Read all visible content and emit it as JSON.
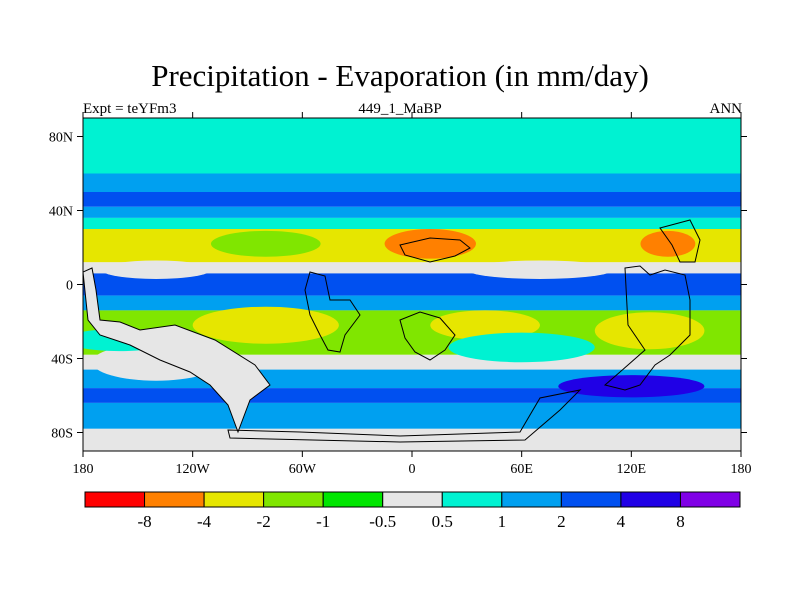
{
  "chart_data": {
    "type": "heatmap",
    "title": "Precipitation - Evaporation (in mm/day)",
    "left_label": "Expt = teYFm3",
    "center_label": "449_1_MaBP",
    "right_label": "ANN",
    "x_ticks": [
      "180",
      "120W",
      "60W",
      "0",
      "60E",
      "120E",
      "180"
    ],
    "x_tick_values": [
      -180,
      -120,
      -60,
      0,
      60,
      120,
      180
    ],
    "y_ticks": [
      "80N",
      "40N",
      "0",
      "40S",
      "80S"
    ],
    "y_tick_values": [
      80,
      40,
      0,
      -40,
      -80
    ],
    "xlim": [
      -180,
      180
    ],
    "ylim": [
      -90,
      90
    ],
    "colorbar": {
      "labels": [
        "-8",
        "-4",
        "-2",
        "-1",
        "-0.5",
        "0.5",
        "1",
        "2",
        "4",
        "8"
      ],
      "colors": [
        "#ff0000",
        "#ff8000",
        "#e6e600",
        "#80e600",
        "#00e600",
        "#e6e6e6",
        "#00f2d2",
        "#00a0f0",
        "#0050f0",
        "#2000e6",
        "#8000e6"
      ]
    },
    "bands": [
      {
        "lat": [
          90,
          70
        ],
        "color": "#00f2d2"
      },
      {
        "lat": [
          70,
          60
        ],
        "color": "#00f2d2"
      },
      {
        "lat": [
          60,
          50
        ],
        "color": "#00a0f0"
      },
      {
        "lat": [
          50,
          42
        ],
        "color": "#0050f0"
      },
      {
        "lat": [
          42,
          36
        ],
        "color": "#00a0f0"
      },
      {
        "lat": [
          36,
          30
        ],
        "color": "#00f2d2"
      },
      {
        "lat": [
          30,
          12
        ],
        "color": "#e6e600"
      },
      {
        "lat": [
          12,
          6
        ],
        "color": "#e6e6e6"
      },
      {
        "lat": [
          6,
          -6
        ],
        "color": "#0050f0"
      },
      {
        "lat": [
          -6,
          -14
        ],
        "color": "#00a0f0"
      },
      {
        "lat": [
          -14,
          -38
        ],
        "color": "#80e600"
      },
      {
        "lat": [
          -38,
          -46
        ],
        "color": "#e6e6e6"
      },
      {
        "lat": [
          -46,
          -56
        ],
        "color": "#00a0f0"
      },
      {
        "lat": [
          -56,
          -64
        ],
        "color": "#0050f0"
      },
      {
        "lat": [
          -64,
          -78
        ],
        "color": "#00a0f0"
      },
      {
        "lat": [
          -78,
          -90
        ],
        "color": "#e6e6e6"
      }
    ],
    "patches": [
      {
        "lon": -80,
        "lat": 22,
        "rx": 30,
        "ry": 7,
        "color": "#80e600"
      },
      {
        "lon": 10,
        "lat": 22,
        "rx": 25,
        "ry": 8,
        "color": "#ff8000"
      },
      {
        "lon": 140,
        "lat": 22,
        "rx": 15,
        "ry": 7,
        "color": "#ff8000"
      },
      {
        "lon": -140,
        "lat": 8,
        "rx": 30,
        "ry": 5,
        "color": "#e6e6e6"
      },
      {
        "lon": 70,
        "lat": 8,
        "rx": 40,
        "ry": 5,
        "color": "#e6e6e6"
      },
      {
        "lon": -80,
        "lat": -22,
        "rx": 40,
        "ry": 10,
        "color": "#e6e600"
      },
      {
        "lon": 40,
        "lat": -22,
        "rx": 30,
        "ry": 8,
        "color": "#e6e600"
      },
      {
        "lon": 130,
        "lat": -25,
        "rx": 30,
        "ry": 10,
        "color": "#e6e600"
      },
      {
        "lon": -140,
        "lat": -42,
        "rx": 35,
        "ry": 10,
        "color": "#e6e6e6"
      },
      {
        "lon": 60,
        "lat": -34,
        "rx": 40,
        "ry": 8,
        "color": "#00f2d2"
      },
      {
        "lon": 120,
        "lat": -55,
        "rx": 40,
        "ry": 6,
        "color": "#2000e6"
      },
      {
        "lon": -160,
        "lat": -30,
        "rx": 30,
        "ry": 6,
        "color": "#00f2d2"
      }
    ]
  }
}
